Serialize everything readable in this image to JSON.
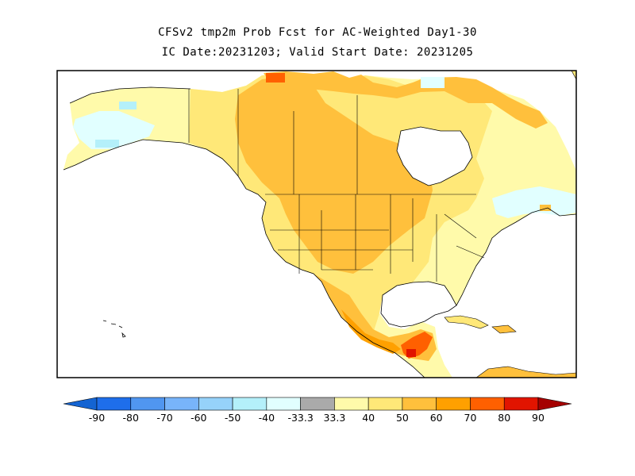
{
  "title_line1": "CFSv2 tmp2m Prob Fcst for AC-Weighted Day1-30",
  "title_line2": "IC Date:20231203; Valid Start Date: 20231205",
  "colorbar": {
    "segments": [
      {
        "color": "#1464d2"
      },
      {
        "color": "#1e6eeb"
      },
      {
        "color": "#5096f0"
      },
      {
        "color": "#78b4fa"
      },
      {
        "color": "#96d2fa"
      },
      {
        "color": "#b4f0fa"
      },
      {
        "color": "#e1ffff"
      },
      {
        "color": "#aaaaaa"
      },
      {
        "color": "#fffaaa"
      },
      {
        "color": "#ffe878"
      },
      {
        "color": "#ffc03c"
      },
      {
        "color": "#ffa000"
      },
      {
        "color": "#ff6000"
      },
      {
        "color": "#e11400"
      },
      {
        "color": "#a50000"
      }
    ],
    "labels": [
      "-90",
      "-80",
      "-70",
      "-60",
      "-50",
      "-40",
      "-33.3",
      "33.3",
      "40",
      "50",
      "60",
      "70",
      "80",
      "90"
    ]
  }
}
